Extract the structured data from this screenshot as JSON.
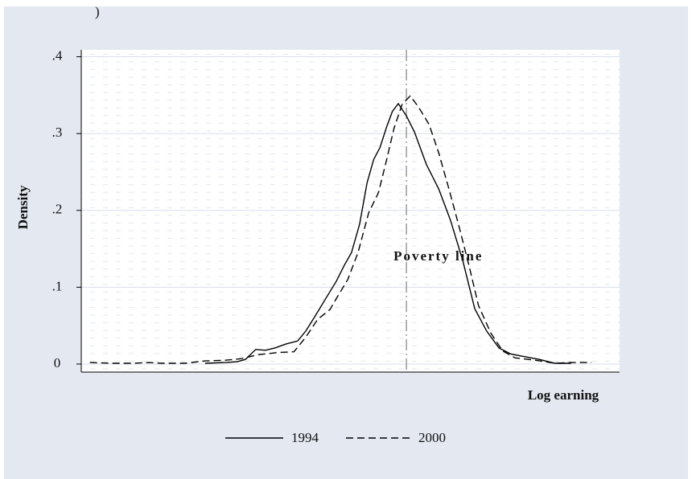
{
  "chart_data": {
    "type": "line",
    "subtitle": ")",
    "xlabel": "Log earning",
    "ylabel": "Density",
    "xlim": [
      0,
      100
    ],
    "ylim": [
      -0.0105,
      0.409
    ],
    "yticks": [
      0,
      {
        "value": 0.1,
        "label": ".1"
      },
      {
        "value": 0.2,
        "label": ".2"
      },
      {
        "value": 0.3,
        "label": ".3"
      },
      {
        "value": 0.4,
        "label": ".4"
      }
    ],
    "grid": true,
    "legend": "bottom",
    "annotation": {
      "text": "Poverty line",
      "x": 60.4
    },
    "series": [
      {
        "name": "1994",
        "color": "#000000",
        "dash": "solid",
        "x": [
          23.0,
          26.8,
          29.0,
          30.5,
          32.4,
          34.2,
          36.0,
          38.0,
          40.2,
          41.7,
          43.5,
          45.4,
          47.4,
          48.9,
          50.2,
          51.7,
          53.1,
          54.3,
          55.5,
          56.7,
          57.8,
          58.9,
          60.4,
          61.9,
          64.1,
          66.4,
          68.6,
          70.9,
          73.1,
          75.3,
          77.6,
          79.8,
          82.1,
          85.1,
          88.0,
          91.0
        ],
        "values": [
          0.001,
          0.002,
          0.003,
          0.006,
          0.019,
          0.018,
          0.021,
          0.026,
          0.03,
          0.043,
          0.063,
          0.085,
          0.108,
          0.129,
          0.145,
          0.182,
          0.236,
          0.266,
          0.282,
          0.308,
          0.329,
          0.339,
          0.323,
          0.302,
          0.26,
          0.228,
          0.187,
          0.134,
          0.072,
          0.043,
          0.021,
          0.013,
          0.01,
          0.006,
          0.001,
          0.001
        ]
      },
      {
        "name": "2000",
        "color": "#000000",
        "dash": "dashed",
        "x": [
          1.6,
          5.8,
          9.6,
          12.6,
          14.8,
          19.3,
          23.0,
          26.8,
          29.7,
          32.7,
          36.5,
          39.5,
          41.7,
          43.9,
          46.2,
          47.7,
          49.5,
          51.4,
          53.4,
          55.2,
          56.7,
          58.1,
          59.6,
          61.1,
          62.6,
          64.6,
          66.4,
          68.3,
          70.1,
          72.0,
          73.8,
          76.1,
          78.3,
          80.6,
          84.3,
          88.0,
          91.0,
          94.8
        ],
        "values": [
          0.002,
          0.001,
          0.001,
          0.002,
          0.001,
          0.001,
          0.004,
          0.005,
          0.007,
          0.012,
          0.015,
          0.016,
          0.035,
          0.058,
          0.071,
          0.089,
          0.11,
          0.145,
          0.197,
          0.223,
          0.265,
          0.307,
          0.338,
          0.349,
          0.335,
          0.312,
          0.275,
          0.228,
          0.181,
          0.129,
          0.076,
          0.04,
          0.017,
          0.008,
          0.005,
          0.001,
          0.002,
          0.002
        ]
      }
    ]
  }
}
